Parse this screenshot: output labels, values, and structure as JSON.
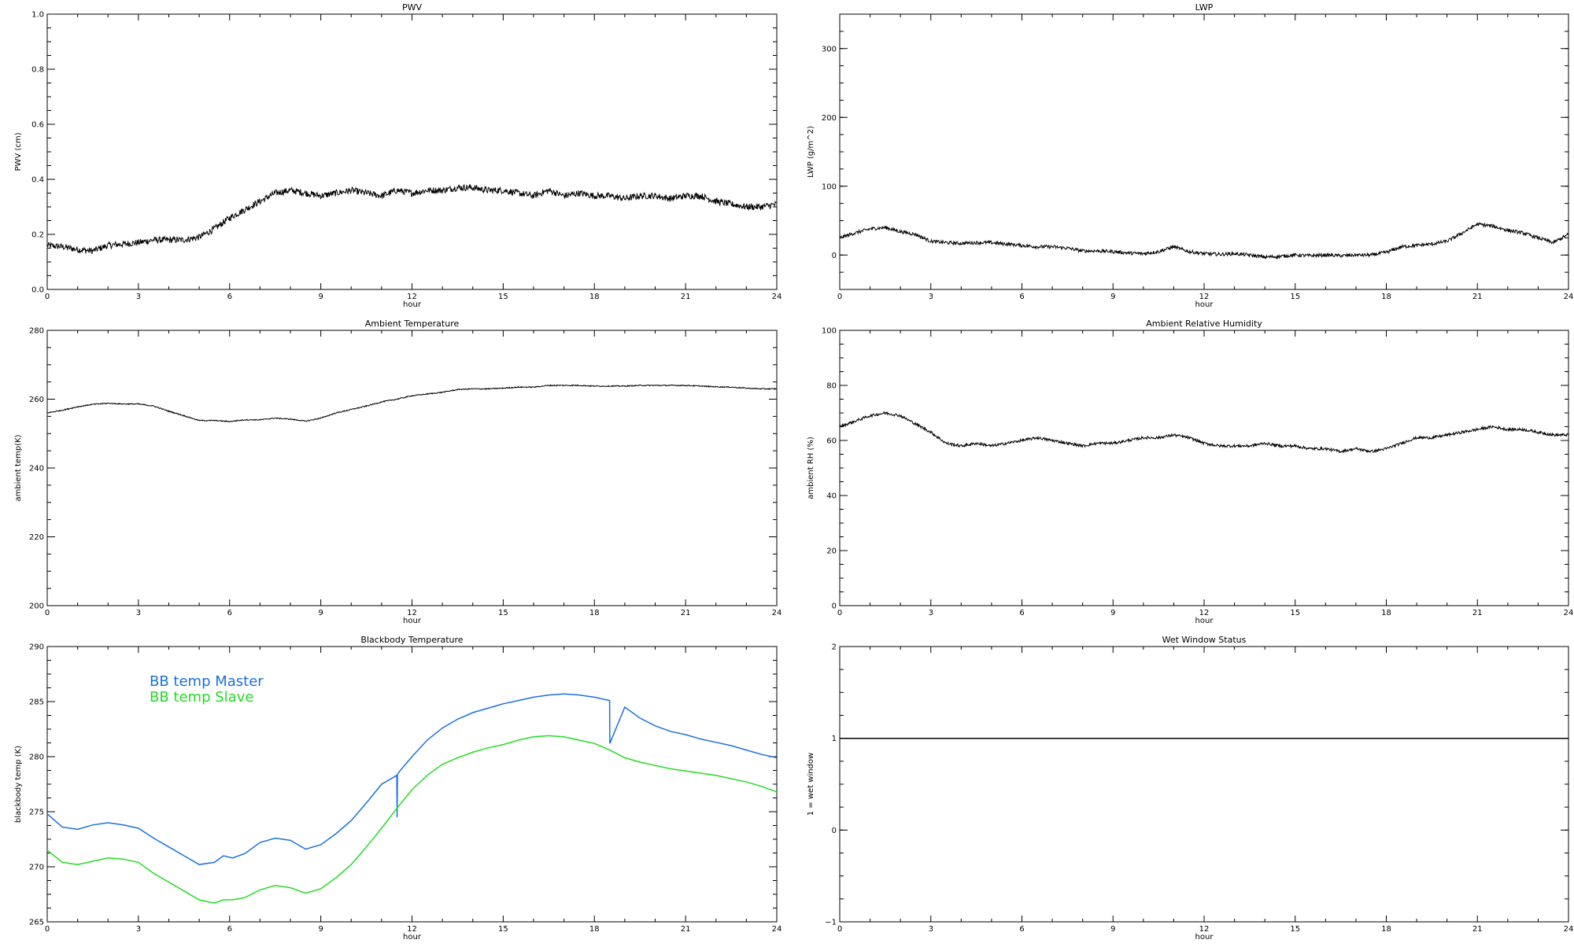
{
  "chart_data": [
    {
      "type": "scatter",
      "title": "PWV",
      "xlabel": "hour",
      "ylabel": "PWV (cm)",
      "xlim": [
        0,
        24
      ],
      "ylim": [
        0,
        1
      ],
      "xticks": [
        "0",
        "3",
        "6",
        "9",
        "12",
        "15",
        "18",
        "21",
        "24"
      ],
      "yticks": [
        "0.0",
        "0.2",
        "0.4",
        "0.6",
        "0.8",
        "1.0"
      ],
      "noise": 0.012,
      "series": [
        {
          "color": "#000000",
          "x": [
            0,
            0.5,
            1,
            1.5,
            2,
            2.5,
            3,
            3.5,
            4,
            4.5,
            5,
            5.5,
            6,
            6.5,
            7,
            7.5,
            8,
            8.5,
            9,
            9.5,
            10,
            10.5,
            11,
            11.5,
            12,
            12.5,
            13,
            13.5,
            14,
            14.5,
            15,
            15.5,
            16,
            16.5,
            17,
            17.5,
            18,
            18.5,
            19,
            19.5,
            20,
            20.5,
            21,
            21.5,
            22,
            22.5,
            23,
            23.5,
            24
          ],
          "y": [
            0.16,
            0.155,
            0.145,
            0.14,
            0.16,
            0.165,
            0.17,
            0.18,
            0.18,
            0.18,
            0.19,
            0.22,
            0.26,
            0.29,
            0.32,
            0.35,
            0.36,
            0.35,
            0.34,
            0.35,
            0.36,
            0.35,
            0.34,
            0.36,
            0.35,
            0.36,
            0.36,
            0.37,
            0.37,
            0.36,
            0.36,
            0.35,
            0.34,
            0.36,
            0.34,
            0.35,
            0.34,
            0.34,
            0.33,
            0.34,
            0.34,
            0.33,
            0.34,
            0.34,
            0.32,
            0.31,
            0.3,
            0.3,
            0.31
          ]
        }
      ]
    },
    {
      "type": "scatter",
      "title": "LWP",
      "xlabel": "hour",
      "ylabel": "LWP (g/m^2)",
      "xlim": [
        0,
        24
      ],
      "ylim": [
        -50,
        350
      ],
      "xticks": [
        "0",
        "3",
        "6",
        "9",
        "12",
        "15",
        "18",
        "21",
        "24"
      ],
      "yticks": [
        "0",
        "100",
        "200",
        "300"
      ],
      "noise": 2.5,
      "series": [
        {
          "color": "#000000",
          "x": [
            0,
            0.5,
            1,
            1.5,
            2,
            2.5,
            3,
            3.5,
            4,
            4.5,
            5,
            5.5,
            6,
            6.5,
            7,
            7.5,
            8,
            8.5,
            9,
            9.5,
            10,
            10.5,
            11,
            11.5,
            12,
            12.5,
            13,
            13.5,
            14,
            14.5,
            15,
            15.5,
            16,
            16.5,
            17,
            17.5,
            18,
            18.5,
            19,
            19.5,
            20,
            20.5,
            21,
            21.5,
            22,
            22.5,
            23,
            23.5,
            24
          ],
          "y": [
            25,
            32,
            38,
            40,
            34,
            30,
            20,
            18,
            17,
            18,
            18,
            16,
            14,
            12,
            12,
            10,
            6,
            6,
            5,
            3,
            2,
            5,
            12,
            5,
            2,
            1,
            2,
            0,
            -3,
            -2,
            0,
            -1,
            0,
            -1,
            0,
            0,
            4,
            12,
            14,
            16,
            20,
            32,
            45,
            42,
            36,
            32,
            25,
            18,
            30
          ]
        }
      ]
    },
    {
      "type": "line",
      "title": "Ambient Temperature",
      "xlabel": "hour",
      "ylabel": "ambient temp(K)",
      "xlim": [
        0,
        24
      ],
      "ylim": [
        200,
        280
      ],
      "xticks": [
        "0",
        "3",
        "6",
        "9",
        "12",
        "15",
        "18",
        "21",
        "24"
      ],
      "yticks": [
        "200",
        "220",
        "240",
        "260",
        "280"
      ],
      "noise": 0.15,
      "series": [
        {
          "color": "#000000",
          "x": [
            0,
            0.5,
            1,
            1.5,
            2,
            2.5,
            3,
            3.5,
            4,
            4.5,
            5,
            5.5,
            6,
            6.5,
            7,
            7.5,
            8,
            8.5,
            9,
            9.5,
            10,
            10.5,
            11,
            11.5,
            12,
            12.5,
            13,
            13.5,
            14,
            14.5,
            15,
            15.5,
            16,
            16.5,
            17,
            17.5,
            18,
            18.5,
            19,
            19.5,
            20,
            20.5,
            21,
            21.5,
            22,
            22.5,
            23,
            23.5,
            24
          ],
          "y": [
            256,
            256.8,
            257.8,
            258.5,
            258.8,
            258.6,
            258.6,
            258,
            256.5,
            255.2,
            253.8,
            253.8,
            253.5,
            254,
            254,
            254.5,
            254.2,
            253.6,
            254.5,
            256,
            257,
            258,
            259.2,
            260,
            261,
            261.5,
            262,
            262.8,
            263,
            263,
            263.2,
            263.5,
            263.5,
            264,
            264,
            264,
            263.8,
            263.8,
            263.8,
            264,
            264,
            264,
            264,
            263.8,
            263.6,
            263.5,
            263.2,
            263,
            263
          ]
        }
      ]
    },
    {
      "type": "line",
      "title": "Ambient Relative Humidity",
      "xlabel": "hour",
      "ylabel": "ambient RH (%)",
      "xlim": [
        0,
        24
      ],
      "ylim": [
        0,
        100
      ],
      "xticks": [
        "0",
        "3",
        "6",
        "9",
        "12",
        "15",
        "18",
        "21",
        "24"
      ],
      "yticks": [
        "0",
        "20",
        "40",
        "60",
        "80",
        "100"
      ],
      "noise": 0.5,
      "series": [
        {
          "color": "#000000",
          "x": [
            0,
            0.5,
            1,
            1.5,
            2,
            2.5,
            3,
            3.5,
            4,
            4.5,
            5,
            5.5,
            6,
            6.5,
            7,
            7.5,
            8,
            8.5,
            9,
            9.5,
            10,
            10.5,
            11,
            11.5,
            12,
            12.5,
            13,
            13.5,
            14,
            14.5,
            15,
            15.5,
            16,
            16.5,
            17,
            17.5,
            18,
            18.5,
            19,
            19.5,
            20,
            20.5,
            21,
            21.5,
            22,
            22.5,
            23,
            23.5,
            24
          ],
          "y": [
            65,
            67,
            69,
            70,
            69,
            66,
            63,
            59,
            58,
            59,
            58,
            59,
            60,
            61,
            60,
            59,
            58,
            59,
            59,
            60,
            61,
            61,
            62,
            61,
            59,
            58,
            58,
            58,
            59,
            58,
            58,
            57,
            57,
            56,
            57,
            56,
            57,
            59,
            61,
            61,
            62,
            63,
            64,
            65,
            64,
            64,
            63,
            62,
            62
          ]
        }
      ]
    },
    {
      "type": "line",
      "title": "Blackbody Temperature",
      "xlabel": "hour",
      "ylabel": "blackbody temp (K)",
      "xlim": [
        0,
        24
      ],
      "ylim": [
        265,
        290
      ],
      "xticks": [
        "0",
        "3",
        "6",
        "9",
        "12",
        "15",
        "18",
        "21",
        "24"
      ],
      "yticks": [
        "265",
        "270",
        "275",
        "280",
        "285",
        "290"
      ],
      "noise": 0,
      "legend": "top-left",
      "series": [
        {
          "name": "BB temp Master",
          "color": "#1a6fe0",
          "x": [
            0,
            0.5,
            1,
            1.5,
            2,
            2.5,
            3,
            3.5,
            4,
            4.5,
            5,
            5.5,
            5.8,
            6.1,
            6.5,
            7,
            7.5,
            8,
            8.5,
            9,
            9.5,
            10,
            10.5,
            11,
            11.5,
            11.51,
            11.52,
            11.6,
            12,
            12.5,
            13,
            13.5,
            14,
            14.5,
            15,
            15.5,
            16,
            16.5,
            17,
            17.5,
            18,
            18.5,
            18.51,
            19,
            19.5,
            20,
            20.5,
            21,
            21.5,
            22,
            22.5,
            23,
            23.5,
            24
          ],
          "y": [
            274.8,
            273.6,
            273.4,
            273.8,
            274,
            273.8,
            273.5,
            272.6,
            271.8,
            271,
            270.2,
            270.4,
            271,
            270.8,
            271.2,
            272.2,
            272.6,
            272.4,
            271.6,
            272,
            273,
            274.2,
            275.8,
            277.5,
            278.3,
            274.5,
            278.4,
            278.7,
            280,
            281.5,
            282.6,
            283.4,
            284,
            284.4,
            284.8,
            285.1,
            285.4,
            285.6,
            285.7,
            285.6,
            285.4,
            285.1,
            281.2,
            284.5,
            283.5,
            282.8,
            282.3,
            282,
            281.6,
            281.3,
            281,
            280.6,
            280.2,
            279.9
          ]
        },
        {
          "name": "BB temp Slave",
          "color": "#22dd22",
          "x": [
            0,
            0.5,
            1,
            1.5,
            2,
            2.5,
            3,
            3.5,
            4,
            4.5,
            5,
            5.5,
            5.8,
            6.1,
            6.5,
            7,
            7.5,
            8,
            8.5,
            9,
            9.5,
            10,
            10.5,
            11,
            11.5,
            12,
            12.5,
            13,
            13.5,
            14,
            14.5,
            15,
            15.5,
            16,
            16.5,
            17,
            17.5,
            18,
            18.5,
            19,
            19.5,
            20,
            20.5,
            21,
            21.5,
            22,
            22.5,
            23,
            23.5,
            24
          ],
          "y": [
            271.5,
            270.4,
            270.2,
            270.5,
            270.8,
            270.7,
            270.4,
            269.4,
            268.6,
            267.8,
            267,
            266.7,
            267,
            267,
            267.2,
            267.9,
            268.3,
            268.1,
            267.6,
            268,
            269,
            270.2,
            271.8,
            273.5,
            275.3,
            277,
            278.3,
            279.3,
            279.9,
            280.4,
            280.8,
            281.1,
            281.5,
            281.8,
            281.9,
            281.8,
            281.5,
            281.2,
            280.6,
            279.9,
            279.5,
            279.2,
            278.9,
            278.7,
            278.5,
            278.3,
            278,
            277.7,
            277.3,
            276.8
          ]
        }
      ]
    },
    {
      "type": "line",
      "title": "Wet Window Status",
      "xlabel": "hour",
      "ylabel": "1 = wet window",
      "xlim": [
        0,
        24
      ],
      "ylim": [
        -1,
        2
      ],
      "xticks": [
        "0",
        "3",
        "6",
        "9",
        "12",
        "15",
        "18",
        "21",
        "24"
      ],
      "yticks": [
        "−1",
        "0",
        "1",
        "2"
      ],
      "noise": 0,
      "series": [
        {
          "color": "#000000",
          "x": [
            0,
            24
          ],
          "y": [
            1,
            1
          ]
        }
      ]
    }
  ]
}
